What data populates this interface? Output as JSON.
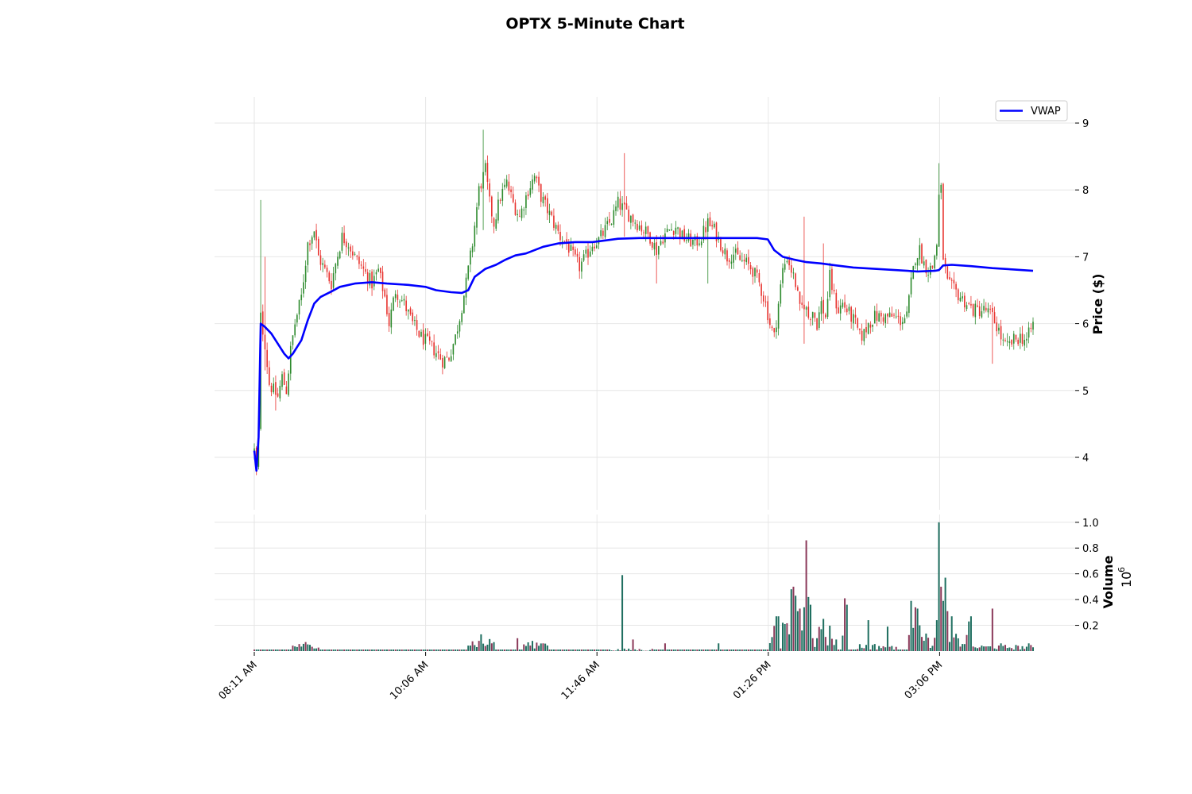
{
  "chart_data": {
    "type": "candlestick",
    "title": "OPTX 5-Minute Chart",
    "x_ticks": [
      "08:11 AM",
      "10:06 AM",
      "11:46 AM",
      "01:26 PM",
      "03:06 PM"
    ],
    "price_axis": {
      "label": "Price ($)",
      "ylim": [
        3.4,
        9.4
      ],
      "ticks": [
        4,
        5,
        6,
        7,
        8,
        9
      ]
    },
    "volume_axis": {
      "label": "Volume",
      "multiplier_label": "10",
      "multiplier_exponent": "6",
      "ylim": [
        0,
        1.035
      ],
      "ticks": [
        "0.2",
        "0.4",
        "0.6",
        "0.8",
        "1.0"
      ]
    },
    "legend": {
      "placement": "top-right",
      "entries": [
        {
          "name": "VWAP",
          "color": "#0000ff"
        }
      ]
    },
    "vwap": {
      "name": "VWAP",
      "points": [
        [
          0,
          4.1
        ],
        [
          1,
          3.8
        ],
        [
          2,
          4.3
        ],
        [
          3,
          6.0
        ],
        [
          5,
          5.95
        ],
        [
          8,
          5.85
        ],
        [
          12,
          5.65
        ],
        [
          14,
          5.55
        ],
        [
          16,
          5.48
        ],
        [
          18,
          5.55
        ],
        [
          22,
          5.75
        ],
        [
          25,
          6.05
        ],
        [
          28,
          6.3
        ],
        [
          31,
          6.4
        ],
        [
          36,
          6.48
        ],
        [
          40,
          6.55
        ],
        [
          47,
          6.6
        ],
        [
          55,
          6.62
        ],
        [
          62,
          6.6
        ],
        [
          72,
          6.58
        ],
        [
          80,
          6.55
        ],
        [
          85,
          6.5
        ],
        [
          92,
          6.47
        ],
        [
          97,
          6.46
        ],
        [
          100,
          6.5
        ],
        [
          103,
          6.7
        ],
        [
          108,
          6.82
        ],
        [
          113,
          6.88
        ],
        [
          117,
          6.95
        ],
        [
          122,
          7.02
        ],
        [
          127,
          7.05
        ],
        [
          135,
          7.15
        ],
        [
          142,
          7.2
        ],
        [
          150,
          7.22
        ],
        [
          158,
          7.22
        ],
        [
          163,
          7.24
        ],
        [
          170,
          7.27
        ],
        [
          180,
          7.28
        ],
        [
          195,
          7.28
        ],
        [
          210,
          7.28
        ],
        [
          225,
          7.28
        ],
        [
          235,
          7.28
        ],
        [
          240,
          7.26
        ],
        [
          243,
          7.1
        ],
        [
          247,
          7.0
        ],
        [
          252,
          6.96
        ],
        [
          258,
          6.92
        ],
        [
          265,
          6.9
        ],
        [
          272,
          6.87
        ],
        [
          280,
          6.84
        ],
        [
          290,
          6.82
        ],
        [
          300,
          6.8
        ],
        [
          310,
          6.78
        ],
        [
          318,
          6.79
        ],
        [
          320,
          6.8
        ],
        [
          322,
          6.87
        ],
        [
          326,
          6.88
        ],
        [
          335,
          6.86
        ],
        [
          345,
          6.83
        ],
        [
          355,
          6.81
        ],
        [
          364,
          6.79
        ]
      ]
    },
    "price_anchors": [
      [
        0,
        4.1
      ],
      [
        1,
        3.8
      ],
      [
        2,
        4.4
      ],
      [
        3,
        6.1
      ],
      [
        5,
        5.7
      ],
      [
        7,
        5.1
      ],
      [
        9,
        5.0
      ],
      [
        11,
        4.9
      ],
      [
        13,
        5.2
      ],
      [
        15,
        5.0
      ],
      [
        17,
        5.6
      ],
      [
        19,
        6.0
      ],
      [
        22,
        6.4
      ],
      [
        25,
        7.2
      ],
      [
        28,
        7.4
      ],
      [
        30,
        7.0
      ],
      [
        33,
        6.8
      ],
      [
        36,
        6.6
      ],
      [
        38,
        6.9
      ],
      [
        41,
        7.3
      ],
      [
        44,
        7.2
      ],
      [
        47,
        7.0
      ],
      [
        50,
        6.85
      ],
      [
        53,
        6.7
      ],
      [
        55,
        6.6
      ],
      [
        58,
        6.8
      ],
      [
        61,
        6.4
      ],
      [
        63,
        6.0
      ],
      [
        66,
        6.5
      ],
      [
        70,
        6.3
      ],
      [
        74,
        6.0
      ],
      [
        78,
        5.8
      ],
      [
        83,
        5.65
      ],
      [
        88,
        5.45
      ],
      [
        91,
        5.5
      ],
      [
        94,
        5.8
      ],
      [
        96,
        6.1
      ],
      [
        99,
        6.6
      ],
      [
        102,
        7.2
      ],
      [
        105,
        8.0
      ],
      [
        108,
        8.3
      ],
      [
        110,
        7.8
      ],
      [
        112,
        7.5
      ],
      [
        115,
        7.9
      ],
      [
        118,
        8.1
      ],
      [
        121,
        7.8
      ],
      [
        124,
        7.6
      ],
      [
        128,
        8.0
      ],
      [
        131,
        8.2
      ],
      [
        134,
        7.9
      ],
      [
        137,
        7.7
      ],
      [
        140,
        7.5
      ],
      [
        143,
        7.3
      ],
      [
        146,
        7.2
      ],
      [
        149,
        7.0
      ],
      [
        152,
        6.85
      ],
      [
        155,
        7.0
      ],
      [
        158,
        7.2
      ],
      [
        161,
        7.25
      ],
      [
        164,
        7.4
      ],
      [
        167,
        7.55
      ],
      [
        170,
        7.8
      ],
      [
        173,
        7.7
      ],
      [
        176,
        7.6
      ],
      [
        179,
        7.5
      ],
      [
        182,
        7.4
      ],
      [
        185,
        7.3
      ],
      [
        188,
        7.1
      ],
      [
        191,
        7.3
      ],
      [
        194,
        7.4
      ],
      [
        197,
        7.45
      ],
      [
        200,
        7.3
      ],
      [
        203,
        7.25
      ],
      [
        206,
        7.2
      ],
      [
        209,
        7.3
      ],
      [
        212,
        7.5
      ],
      [
        215,
        7.4
      ],
      [
        218,
        7.2
      ],
      [
        221,
        7.0
      ],
      [
        224,
        7.05
      ],
      [
        227,
        6.95
      ],
      [
        230,
        6.9
      ],
      [
        233,
        6.8
      ],
      [
        236,
        6.6
      ],
      [
        239,
        6.3
      ],
      [
        241,
        6.0
      ],
      [
        243,
        5.8
      ],
      [
        245,
        6.3
      ],
      [
        247,
        6.8
      ],
      [
        249,
        7.0
      ],
      [
        251,
        6.8
      ],
      [
        253,
        6.6
      ],
      [
        255,
        6.2
      ],
      [
        257,
        6.3
      ],
      [
        259,
        6.1
      ],
      [
        261,
        6.2
      ],
      [
        263,
        6.0
      ],
      [
        265,
        6.3
      ],
      [
        267,
        6.1
      ],
      [
        269,
        6.7
      ],
      [
        271,
        6.4
      ],
      [
        273,
        6.2
      ],
      [
        275,
        6.3
      ],
      [
        277,
        6.2
      ],
      [
        279,
        6.1
      ],
      [
        281,
        6.0
      ],
      [
        283,
        5.8
      ],
      [
        285,
        5.85
      ],
      [
        287,
        6.0
      ],
      [
        290,
        6.1
      ],
      [
        293,
        6.1
      ],
      [
        296,
        6.1
      ],
      [
        299,
        6.1
      ],
      [
        302,
        6.05
      ],
      [
        305,
        6.1
      ],
      [
        307,
        6.6
      ],
      [
        309,
        7.0
      ],
      [
        311,
        7.1
      ],
      [
        313,
        6.9
      ],
      [
        315,
        6.8
      ],
      [
        317,
        6.85
      ],
      [
        319,
        7.2
      ],
      [
        320,
        7.9
      ],
      [
        321,
        8.0
      ],
      [
        322,
        7.0
      ],
      [
        324,
        6.6
      ],
      [
        327,
        6.5
      ],
      [
        330,
        6.4
      ],
      [
        333,
        6.3
      ],
      [
        336,
        6.2
      ],
      [
        339,
        6.2
      ],
      [
        342,
        6.2
      ],
      [
        345,
        6.1
      ],
      [
        348,
        5.9
      ],
      [
        350,
        5.7
      ],
      [
        352,
        5.65
      ],
      [
        355,
        5.75
      ],
      [
        358,
        5.8
      ],
      [
        361,
        5.75
      ],
      [
        364,
        6.0
      ]
    ],
    "price_spikes": [
      [
        3,
        7.85,
        6.2
      ],
      [
        5,
        7.0,
        5.3
      ],
      [
        10,
        4.9,
        4.7
      ],
      [
        107,
        8.9,
        7.4
      ],
      [
        173,
        8.55,
        7.3
      ],
      [
        188,
        6.75,
        6.6
      ],
      [
        212,
        7.65,
        6.6
      ],
      [
        257,
        7.6,
        5.7
      ],
      [
        266,
        7.2,
        6.0
      ],
      [
        320,
        8.4,
        7.5
      ],
      [
        345,
        6.2,
        5.4
      ]
    ],
    "volume_bars": {
      "baseline": 0.012,
      "segments": [
        [
          18,
          30,
          0.02,
          0.06
        ],
        [
          100,
          112,
          0.02,
          0.1
        ],
        [
          126,
          137,
          0.02,
          0.08
        ],
        [
          167,
          186,
          0.0,
          0.02
        ],
        [
          241,
          272,
          0.02,
          0.22
        ],
        [
          282,
          300,
          0.01,
          0.06
        ],
        [
          306,
          336,
          0.02,
          0.14
        ],
        [
          336,
          364,
          0.01,
          0.05
        ]
      ],
      "spikes": [
        [
          24,
          0.07
        ],
        [
          106,
          0.13
        ],
        [
          111,
          0.06
        ],
        [
          123,
          0.1
        ],
        [
          135,
          0.06
        ],
        [
          172,
          0.59
        ],
        [
          177,
          0.09
        ],
        [
          192,
          0.06
        ],
        [
          217,
          0.06
        ],
        [
          244,
          0.27
        ],
        [
          245,
          0.27
        ],
        [
          247,
          0.22
        ],
        [
          248,
          0.21
        ],
        [
          250,
          0.13
        ],
        [
          251,
          0.48
        ],
        [
          252,
          0.5
        ],
        [
          253,
          0.43
        ],
        [
          254,
          0.31
        ],
        [
          255,
          0.33
        ],
        [
          256,
          0.16
        ],
        [
          257,
          0.34
        ],
        [
          258,
          0.86
        ],
        [
          259,
          0.42
        ],
        [
          260,
          0.36
        ],
        [
          261,
          0.1
        ],
        [
          263,
          0.1
        ],
        [
          266,
          0.25
        ],
        [
          267,
          0.11
        ],
        [
          272,
          0.09
        ],
        [
          275,
          0.12
        ],
        [
          276,
          0.41
        ],
        [
          277,
          0.36
        ],
        [
          287,
          0.24
        ],
        [
          296,
          0.19
        ],
        [
          307,
          0.39
        ],
        [
          308,
          0.18
        ],
        [
          309,
          0.34
        ],
        [
          310,
          0.33
        ],
        [
          311,
          0.2
        ],
        [
          312,
          0.11
        ],
        [
          313,
          0.08
        ],
        [
          319,
          0.24
        ],
        [
          320,
          1.0
        ],
        [
          321,
          0.5
        ],
        [
          322,
          0.39
        ],
        [
          323,
          0.57
        ],
        [
          324,
          0.31
        ],
        [
          326,
          0.27
        ],
        [
          334,
          0.23
        ],
        [
          335,
          0.27
        ],
        [
          345,
          0.33
        ],
        [
          349,
          0.06
        ],
        [
          362,
          0.06
        ]
      ]
    },
    "colors": {
      "up": "#2e8b2e",
      "down": "#e8332f",
      "volume_up": "#1f6f60",
      "volume_down": "#8b3a5a",
      "vwap": "#0000ff"
    }
  }
}
